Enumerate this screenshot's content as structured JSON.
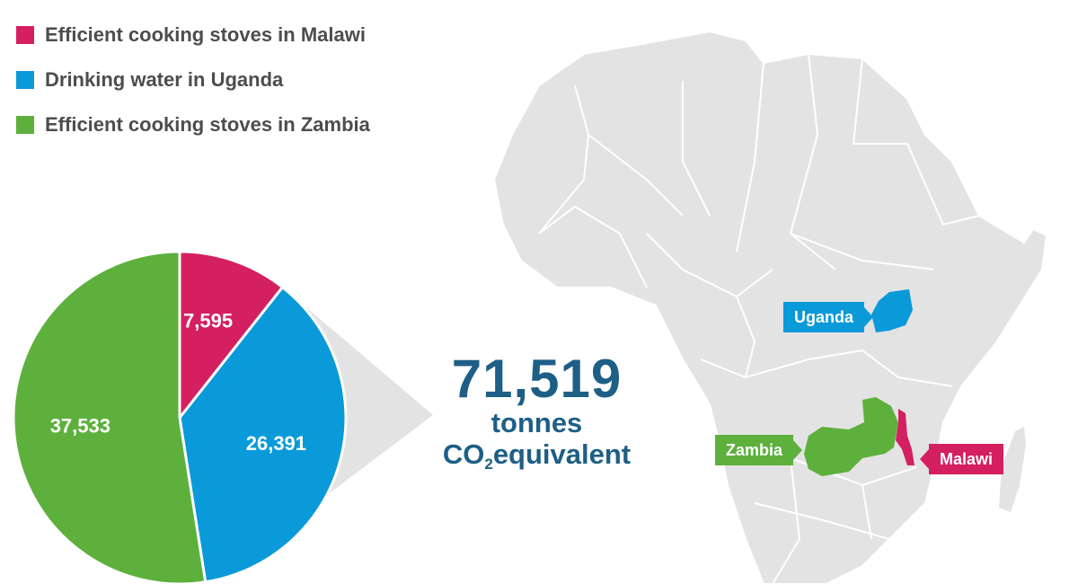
{
  "colors": {
    "malawi": "#d41f60",
    "uganda": "#0b9ad9",
    "zambia": "#5db03c",
    "map_land": "#e3e3e3",
    "map_border": "#ffffff",
    "total_text": "#1d5f86"
  },
  "chart_data": {
    "type": "pie",
    "title": "",
    "series": [
      {
        "name": "Efficient cooking stoves in Malawi",
        "value": 7595,
        "label": "7,595",
        "color": "#d41f60"
      },
      {
        "name": "Drinking water in Uganda",
        "value": 26391,
        "label": "26,391",
        "color": "#0b9ad9"
      },
      {
        "name": "Efficient cooking stoves in Zambia",
        "value": 37533,
        "label": "37,533",
        "color": "#5db03c"
      }
    ],
    "legend_position": "top-left",
    "total": {
      "value": "71,519",
      "unit": "tonnes",
      "desc_prefix": "CO",
      "desc_sub": "2",
      "desc_suffix": "equivalent"
    }
  },
  "map": {
    "labels": [
      {
        "country": "Uganda",
        "text": "Uganda",
        "color": "#0b9ad9"
      },
      {
        "country": "Zambia",
        "text": "Zambia",
        "color": "#5db03c"
      },
      {
        "country": "Malawi",
        "text": "Malawi",
        "color": "#d41f60"
      }
    ]
  }
}
